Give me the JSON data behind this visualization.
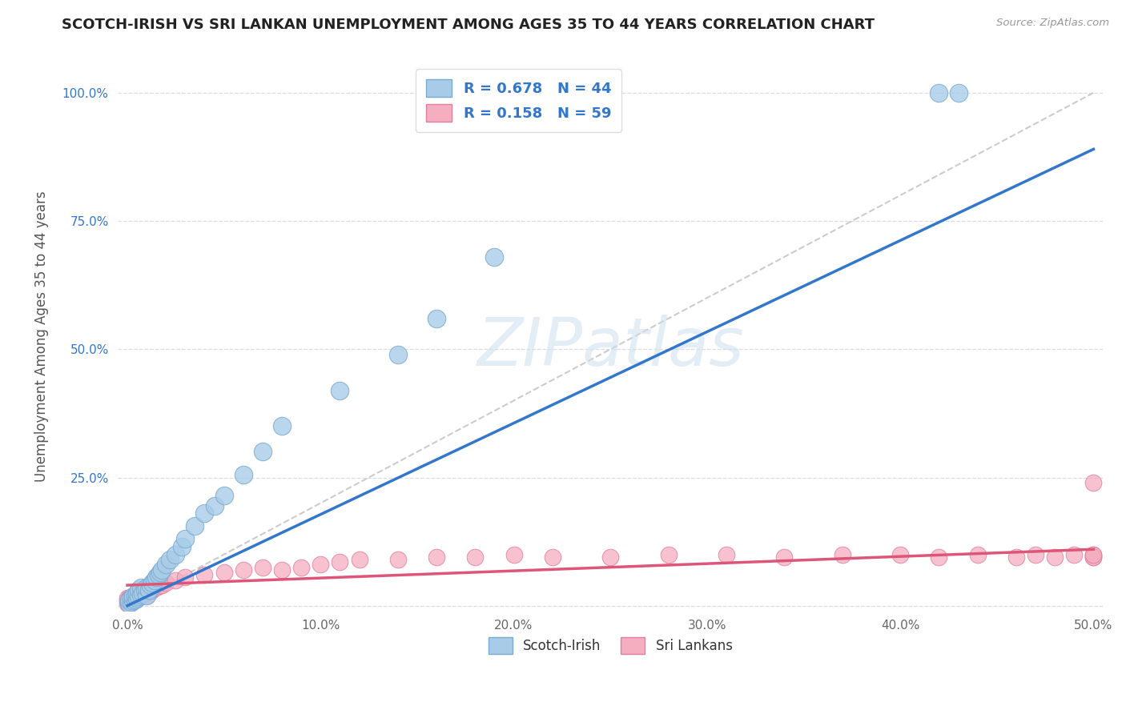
{
  "title": "SCOTCH-IRISH VS SRI LANKAN UNEMPLOYMENT AMONG AGES 35 TO 44 YEARS CORRELATION CHART",
  "source": "Source: ZipAtlas.com",
  "ylabel": "Unemployment Among Ages 35 to 44 years",
  "xlim": [
    -0.005,
    0.505
  ],
  "ylim": [
    -0.01,
    1.06
  ],
  "xticks": [
    0.0,
    0.1,
    0.2,
    0.3,
    0.4,
    0.5
  ],
  "xtick_labels": [
    "0.0%",
    "10.0%",
    "20.0%",
    "30.0%",
    "40.0%",
    "50.0%"
  ],
  "yticks": [
    0.0,
    0.25,
    0.5,
    0.75,
    1.0
  ],
  "ytick_labels": [
    "",
    "25.0%",
    "50.0%",
    "75.0%",
    "100.0%"
  ],
  "scotch_irish_R": 0.678,
  "scotch_irish_N": 44,
  "sri_lankan_R": 0.158,
  "sri_lankan_N": 59,
  "scotch_irish_color": "#a8cce8",
  "sri_lankan_color": "#f5adc0",
  "scotch_irish_edge_color": "#7aaad0",
  "sri_lankan_edge_color": "#e080a0",
  "scotch_irish_line_color": "#3377cc",
  "sri_lankan_line_color": "#dd5577",
  "diagonal_color": "#cccccc",
  "watermark": "ZIPatlas",
  "background_color": "#ffffff",
  "grid_color": "#dddddd",
  "scotch_irish_scatter_x": [
    0.001,
    0.001,
    0.002,
    0.002,
    0.003,
    0.003,
    0.004,
    0.004,
    0.005,
    0.005,
    0.006,
    0.006,
    0.007,
    0.007,
    0.008,
    0.009,
    0.01,
    0.01,
    0.011,
    0.012,
    0.013,
    0.014,
    0.015,
    0.016,
    0.017,
    0.018,
    0.02,
    0.022,
    0.025,
    0.028,
    0.03,
    0.035,
    0.04,
    0.045,
    0.05,
    0.06,
    0.07,
    0.08,
    0.11,
    0.14,
    0.16,
    0.19,
    0.42,
    0.43
  ],
  "scotch_irish_scatter_y": [
    0.005,
    0.01,
    0.008,
    0.015,
    0.01,
    0.018,
    0.012,
    0.02,
    0.015,
    0.025,
    0.018,
    0.03,
    0.022,
    0.035,
    0.025,
    0.03,
    0.02,
    0.035,
    0.03,
    0.04,
    0.045,
    0.05,
    0.055,
    0.06,
    0.065,
    0.07,
    0.08,
    0.09,
    0.1,
    0.115,
    0.13,
    0.155,
    0.18,
    0.195,
    0.215,
    0.255,
    0.3,
    0.35,
    0.42,
    0.49,
    0.56,
    0.68,
    1.0,
    1.0
  ],
  "sri_lankan_scatter_x": [
    0.0,
    0.0,
    0.0,
    0.001,
    0.001,
    0.001,
    0.002,
    0.002,
    0.003,
    0.003,
    0.004,
    0.004,
    0.005,
    0.005,
    0.006,
    0.007,
    0.008,
    0.009,
    0.01,
    0.01,
    0.012,
    0.013,
    0.015,
    0.016,
    0.018,
    0.02,
    0.025,
    0.03,
    0.04,
    0.05,
    0.06,
    0.07,
    0.08,
    0.09,
    0.1,
    0.11,
    0.12,
    0.14,
    0.16,
    0.18,
    0.2,
    0.22,
    0.25,
    0.28,
    0.31,
    0.34,
    0.37,
    0.4,
    0.42,
    0.44,
    0.46,
    0.47,
    0.48,
    0.49,
    0.5,
    0.5,
    0.5,
    0.5,
    0.5
  ],
  "sri_lankan_scatter_y": [
    0.005,
    0.01,
    0.015,
    0.005,
    0.01,
    0.015,
    0.008,
    0.015,
    0.01,
    0.018,
    0.012,
    0.02,
    0.015,
    0.022,
    0.018,
    0.02,
    0.022,
    0.025,
    0.02,
    0.03,
    0.028,
    0.032,
    0.035,
    0.038,
    0.04,
    0.045,
    0.05,
    0.055,
    0.06,
    0.065,
    0.07,
    0.075,
    0.07,
    0.075,
    0.08,
    0.085,
    0.09,
    0.09,
    0.095,
    0.095,
    0.1,
    0.095,
    0.095,
    0.1,
    0.1,
    0.095,
    0.1,
    0.1,
    0.095,
    0.1,
    0.095,
    0.1,
    0.095,
    0.1,
    0.095,
    0.1,
    0.095,
    0.24,
    0.1
  ],
  "si_line_x0": 0.0,
  "si_line_y0": 0.0,
  "si_line_x1": 0.5,
  "si_line_y1": 0.89,
  "sl_line_x0": 0.0,
  "sl_line_y0": 0.04,
  "sl_line_x1": 0.5,
  "sl_line_y1": 0.11
}
